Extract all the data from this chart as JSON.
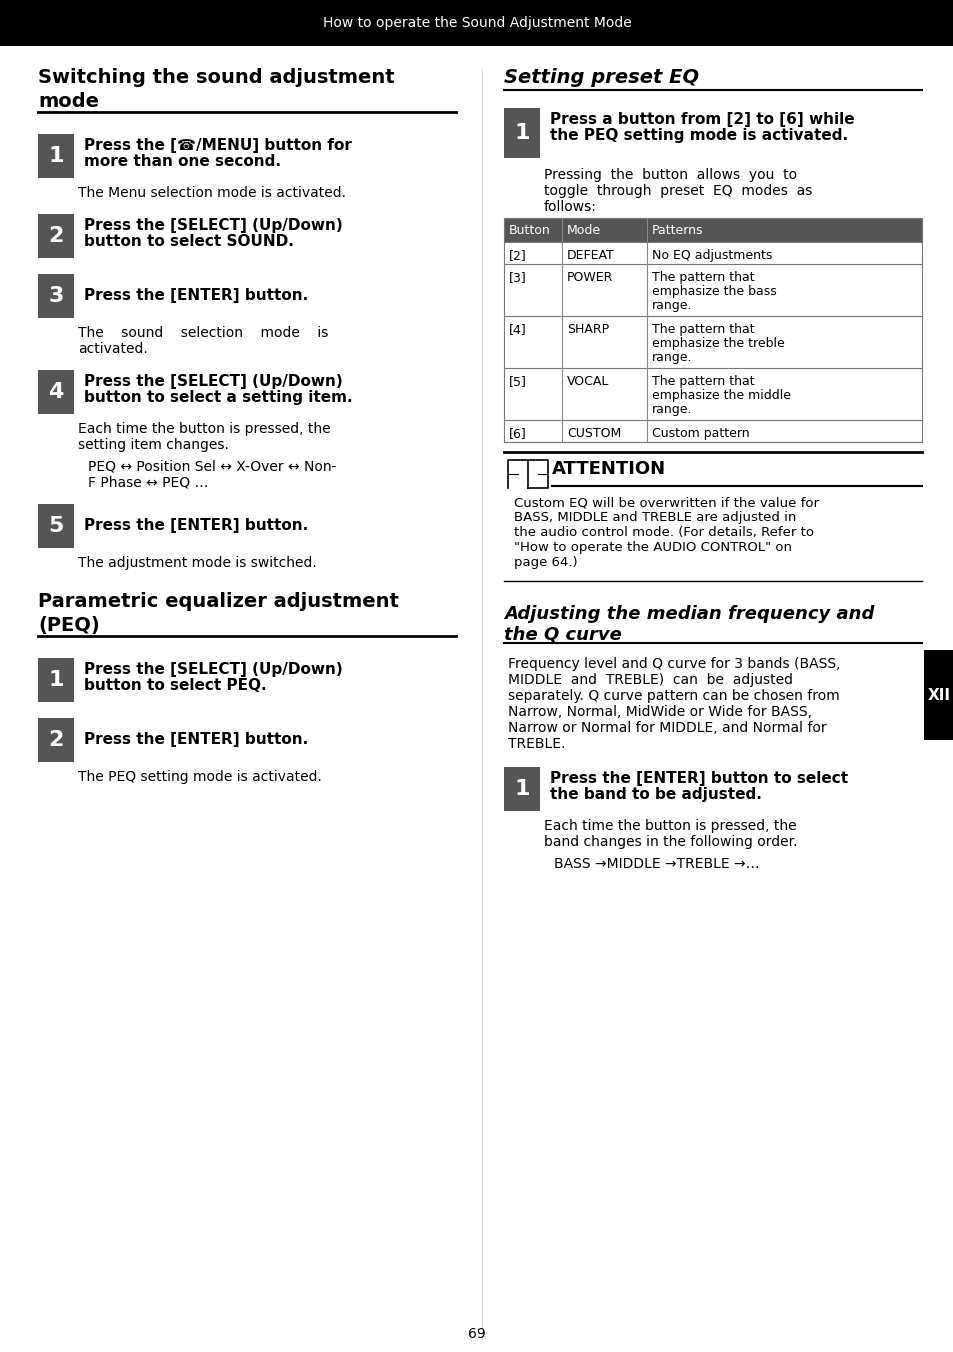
{
  "header_text": "How to operate the Sound Adjustment Mode",
  "header_bg": "#000000",
  "header_text_color": "#ffffff",
  "page_bg": "#ffffff",
  "step_bg": "#555555",
  "step_color": "#ffffff",
  "table_header_bg": "#555555",
  "table_header_color": "#ffffff",
  "table_cols": [
    "Button",
    "Mode",
    "Patterns"
  ],
  "table_rows": [
    [
      "[2]",
      "DEFEAT",
      "No EQ adjustments"
    ],
    [
      "[3]",
      "POWER",
      "The pattern that\nemphasize the bass\nrange."
    ],
    [
      "[4]",
      "SHARP",
      "The pattern that\nemphasize the treble\nrange."
    ],
    [
      "[5]",
      "VOCAL",
      "The pattern that\nemphasize the middle\nrange."
    ],
    [
      "[6]",
      "CUSTOM",
      "Custom pattern"
    ]
  ],
  "side_label": "XII",
  "page_num": "69"
}
